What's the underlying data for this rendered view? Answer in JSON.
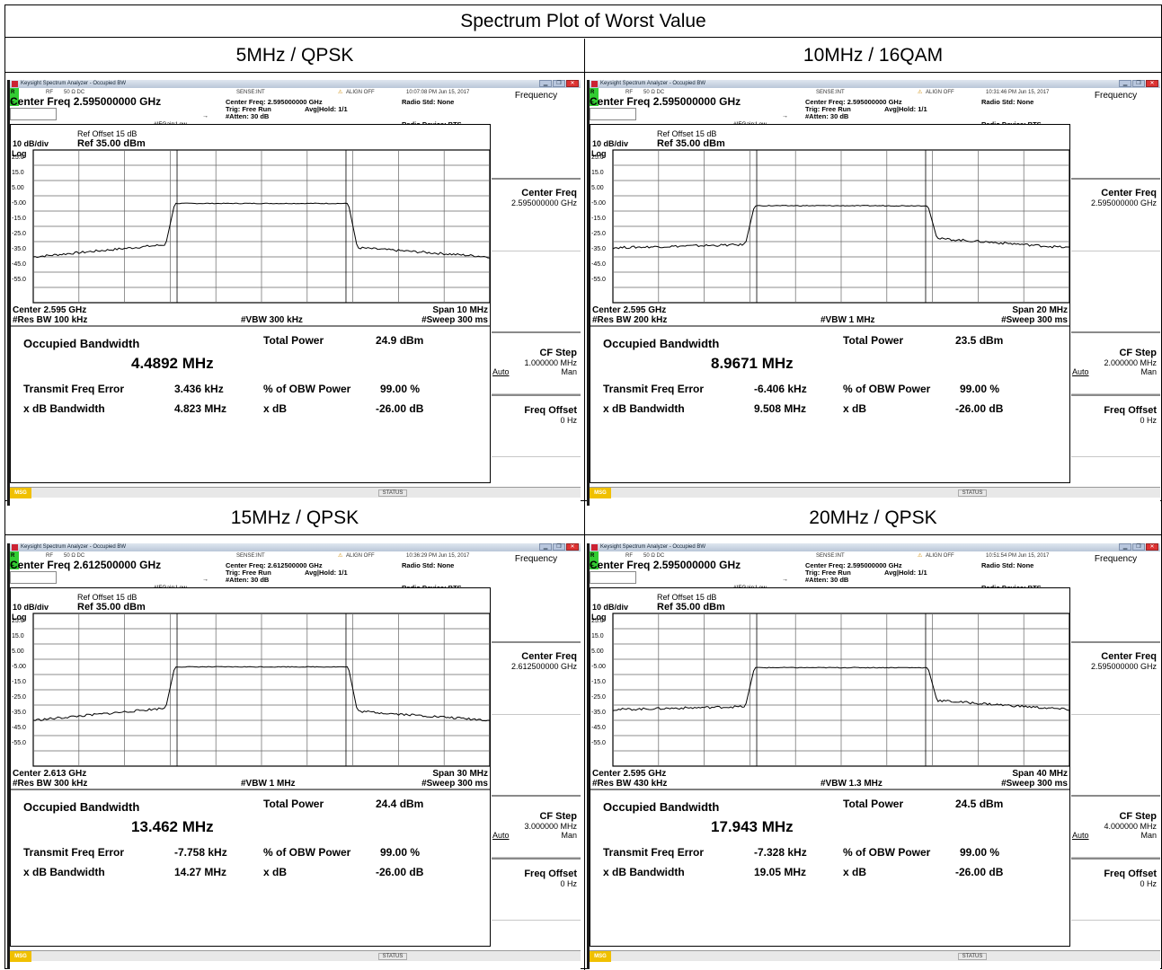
{
  "page_title": "Spectrum Plot of Worst Value",
  "app_title": "Keysight Spectrum Analyzer - Occupied BW",
  "status_line": {
    "rl": "R L",
    "rf": "RF",
    "ohm": "50 Ω  DC",
    "sense": "SENSE:INT",
    "align": "ALIGN OFF"
  },
  "labels": {
    "center_freq_prefix": "Center Freq",
    "ifgain": "#IFGain:Low",
    "center_freq_small_prefix": "Center Freq:",
    "trig": "Trig: Free Run",
    "avg": "Avg|Hold: 1/1",
    "atten": "#Atten: 30 dB",
    "radio_std": "Radio Std: None",
    "radio_device": "Radio Device: BTS",
    "ref_offset": "Ref Offset 15 dB",
    "ref": "Ref 35.00 dBm",
    "div": "10 dB/div",
    "log": "Log",
    "occupied_bandwidth": "Occupied Bandwidth",
    "total_power": "Total Power",
    "transmit_freq_error": "Transmit Freq Error",
    "pct_obw_power": "% of OBW Power",
    "xdb_bandwidth": "x dB Bandwidth",
    "xdb": "x dB",
    "msg": "MSG",
    "status": "STATUS"
  },
  "softkeys": {
    "frequency": "Frequency",
    "center_freq": "Center Freq",
    "cf_step": "CF Step",
    "auto": "Auto",
    "man": "Man",
    "freq_offset": "Freq Offset",
    "freq_offset_value": "0 Hz"
  },
  "y_ticks": [
    "25.0",
    "15.0",
    "5.00",
    "-5.00",
    "-15.0",
    "-25.0",
    "-35.0",
    "-45.0",
    "-55.0"
  ],
  "panels": [
    {
      "caption": "5MHz / QPSK",
      "timestamp": "10:07:08 PM Jun 15, 2017",
      "center_freq": "2.595000000 GHz",
      "center_short": "Center  2.595 GHz",
      "span": "Span 10 MHz",
      "res_bw": "#Res BW  100 kHz",
      "vbw": "#VBW  300 kHz",
      "sweep": "#Sweep  300 ms",
      "cf_step": "1.000000 MHz",
      "obw": "4.4892 MHz",
      "total_power": "24.9 dBm",
      "freq_error": "3.436 kHz",
      "obw_pct": "99.00 %",
      "xdb_bw": "4.823 MHz",
      "xdb": "-26.00 dB",
      "trace": {
        "skirt_left": 2.1,
        "skirt_right": 2.1,
        "plateau_dbm": 0.0,
        "floor_dbm": -35
      }
    },
    {
      "caption": "10MHz / 16QAM",
      "timestamp": "10:31:46 PM Jun 15, 2017",
      "center_freq": "2.595000000 GHz",
      "center_short": "Center  2.595 GHz",
      "span": "Span 20 MHz",
      "res_bw": "#Res BW  200 kHz",
      "vbw": "#VBW  1 MHz",
      "sweep": "#Sweep  300 ms",
      "cf_step": "2.000000 MHz",
      "obw": "8.9671 MHz",
      "total_power": "23.5 dBm",
      "freq_error": "-6.406 kHz",
      "obw_pct": "99.00 %",
      "xdb_bw": "9.508 MHz",
      "xdb": "-26.00 dB",
      "trace": {
        "plateau_dbm": -1.5,
        "floor_dbm": -29
      }
    },
    {
      "caption": "15MHz / QPSK",
      "timestamp": "10:36:29 PM Jun 15, 2017",
      "center_freq": "2.612500000 GHz",
      "center_short": "Center  2.613 GHz",
      "span": "Span 30 MHz",
      "res_bw": "#Res BW  300 kHz",
      "vbw": "#VBW  1 MHz",
      "sweep": "#Sweep  300 ms",
      "cf_step": "3.000000 MHz",
      "obw": "13.462 MHz",
      "total_power": "24.4 dBm",
      "freq_error": "-7.758 kHz",
      "obw_pct": "99.00 %",
      "xdb_bw": "14.27 MHz",
      "xdb": "-26.00 dB",
      "trace": {
        "plateau_dbm": 0.0,
        "floor_dbm": -35
      }
    },
    {
      "caption": "20MHz / QPSK",
      "timestamp": "10:51:54 PM Jun 15, 2017",
      "center_freq": "2.595000000 GHz",
      "center_short": "Center  2.595 GHz",
      "span": "Span 40 MHz",
      "res_bw": "#Res BW  430 kHz",
      "vbw": "#VBW  1.3 MHz",
      "sweep": "#Sweep  300 ms",
      "cf_step": "4.000000 MHz",
      "obw": "17.943 MHz",
      "total_power": "24.5 dBm",
      "freq_error": "-7.328 kHz",
      "obw_pct": "99.00 %",
      "xdb_bw": "19.05 MHz",
      "xdb": "-26.00 dB",
      "trace": {
        "plateau_dbm": -0.5,
        "floor_dbm": -28
      }
    }
  ]
}
